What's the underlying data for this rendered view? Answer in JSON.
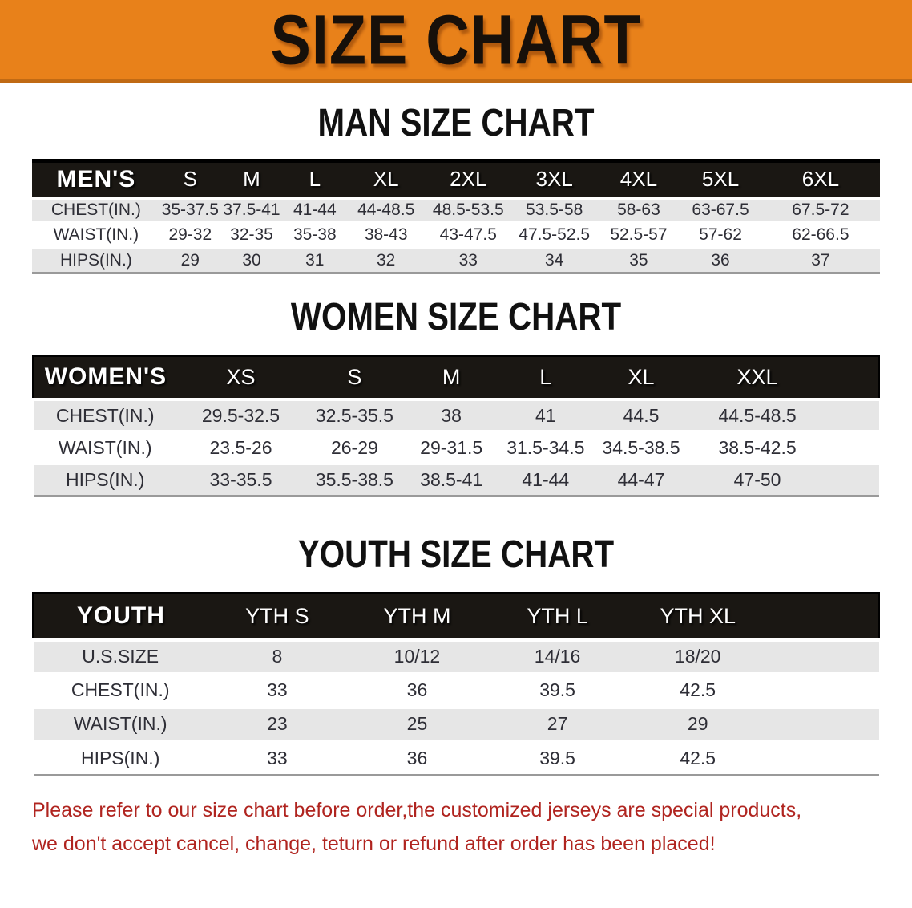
{
  "banner": {
    "title": "SIZE CHART",
    "bg_color": "#E8811A",
    "text_color": "#17100A"
  },
  "colors": {
    "table_header_bg": "#1A1713",
    "row_alt_bg": "#E6E6E6",
    "disclaimer_red": "#B0241F"
  },
  "sections": [
    {
      "heading": "MAN SIZE CHART",
      "table": {
        "header_label": "MEN'S",
        "columns": [
          "S",
          "M",
          "L",
          "XL",
          "2XL",
          "3XL",
          "4XL",
          "5XL",
          "6XL"
        ],
        "rows": [
          {
            "label": "CHEST(IN.)",
            "values": [
              "35-37.5",
              "37.5-41",
              "41-44",
              "44-48.5",
              "48.5-53.5",
              "53.5-58",
              "58-63",
              "63-67.5",
              "67.5-72"
            ]
          },
          {
            "label": "WAIST(IN.)",
            "values": [
              "29-32",
              "32-35",
              "35-38",
              "38-43",
              "43-47.5",
              "47.5-52.5",
              "52.5-57",
              "57-62",
              "62-66.5"
            ]
          },
          {
            "label": "HIPS(IN.)",
            "values": [
              "29",
              "30",
              "31",
              "32",
              "33",
              "34",
              "35",
              "36",
              "37"
            ]
          }
        ]
      }
    },
    {
      "heading": "WOMEN SIZE CHART",
      "table": {
        "header_label": "WOMEN'S",
        "columns": [
          "XS",
          "S",
          "M",
          "L",
          "XL",
          "XXL"
        ],
        "rows": [
          {
            "label": "CHEST(IN.)",
            "values": [
              "29.5-32.5",
              "32.5-35.5",
              "38",
              "41",
              "44.5",
              "44.5-48.5"
            ]
          },
          {
            "label": "WAIST(IN.)",
            "values": [
              "23.5-26",
              "26-29",
              "29-31.5",
              "31.5-34.5",
              "34.5-38.5",
              "38.5-42.5"
            ]
          },
          {
            "label": "HIPS(IN.)",
            "values": [
              "33-35.5",
              "35.5-38.5",
              "38.5-41",
              "41-44",
              "44-47",
              "47-50"
            ]
          }
        ]
      }
    },
    {
      "heading": "YOUTH SIZE CHART",
      "table": {
        "header_label": "YOUTH",
        "columns": [
          "YTH S",
          "YTH M",
          "YTH L",
          "YTH XL"
        ],
        "rows": [
          {
            "label": "U.S.SIZE",
            "values": [
              "8",
              "10/12",
              "14/16",
              "18/20"
            ]
          },
          {
            "label": "CHEST(IN.)",
            "values": [
              "33",
              "36",
              "39.5",
              "42.5"
            ]
          },
          {
            "label": "WAIST(IN.)",
            "values": [
              "23",
              "25",
              "27",
              "29"
            ]
          },
          {
            "label": "HIPS(IN.)",
            "values": [
              "33",
              "36",
              "39.5",
              "42.5"
            ]
          }
        ]
      }
    }
  ],
  "disclaimer": {
    "lines": [
      "Please refer to our size chart before order,the customized jerseys are special products,",
      "we don't accept cancel, change, teturn or refund after order has been placed!"
    ]
  }
}
